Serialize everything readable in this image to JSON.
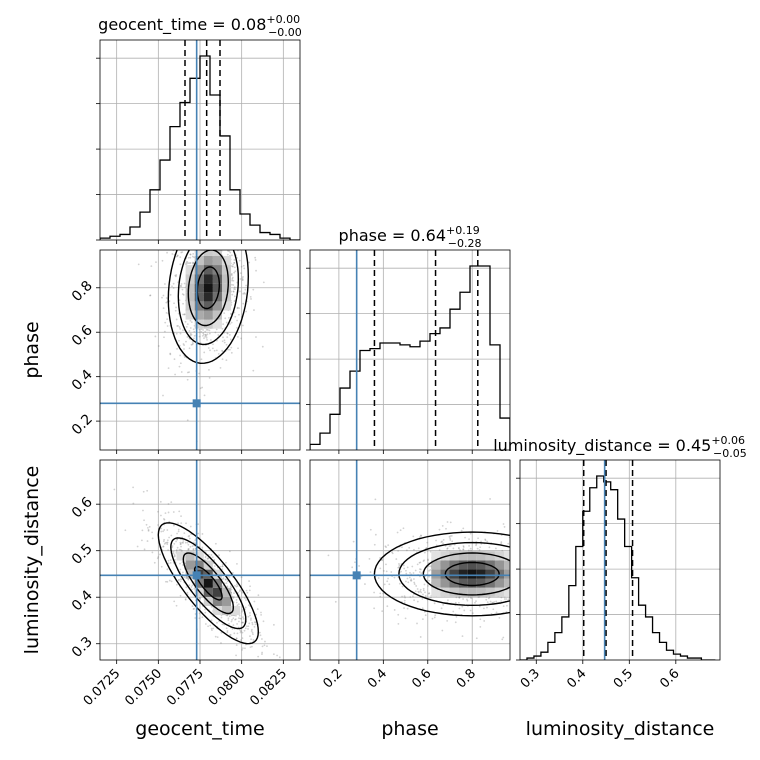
{
  "colors": {
    "truth": "#4682b4",
    "hist": "#000000",
    "grid": "#b0b0b0",
    "scatter": "#7f7f7f"
  },
  "chart_data": {
    "type": "corner",
    "parameters": [
      "geocent_time",
      "phase",
      "luminosity_distance"
    ],
    "axis_labels": [
      "geocent_time",
      "phase",
      "luminosity_distance"
    ],
    "ranges": {
      "geocent_time": [
        0.0715,
        0.0835
      ],
      "phase": [
        0.07,
        0.97
      ],
      "luminosity_distance": [
        0.265,
        0.695
      ]
    },
    "ticks": {
      "geocent_time": [
        {
          "v": 0.0725,
          "label": "0.0725"
        },
        {
          "v": 0.075,
          "label": "0.0750"
        },
        {
          "v": 0.0775,
          "label": "0.0775"
        },
        {
          "v": 0.08,
          "label": "0.0800"
        },
        {
          "v": 0.0825,
          "label": "0.0825"
        }
      ],
      "phase": [
        {
          "v": 0.2,
          "label": "0.2"
        },
        {
          "v": 0.4,
          "label": "0.4"
        },
        {
          "v": 0.6,
          "label": "0.6"
        },
        {
          "v": 0.8,
          "label": "0.8"
        }
      ],
      "luminosity_distance": [
        {
          "v": 0.3,
          "label": "0.3"
        },
        {
          "v": 0.4,
          "label": "0.4"
        },
        {
          "v": 0.5,
          "label": "0.5"
        },
        {
          "v": 0.6,
          "label": "0.6"
        }
      ]
    },
    "titles": [
      {
        "name": "geocent_time",
        "median": "0.08",
        "plus": "+0.00",
        "minus": "−0.00"
      },
      {
        "name": "phase",
        "median": "0.64",
        "plus": "+0.19",
        "minus": "−0.28"
      },
      {
        "name": "luminosity_distance",
        "median": "0.45",
        "plus": "+0.06",
        "minus": "−0.05"
      }
    ],
    "truths": {
      "geocent_time": 0.0773,
      "phase": 0.28,
      "luminosity_distance": 0.447
    },
    "quantiles": {
      "geocent_time": [
        0.0766,
        0.0779,
        0.0787
      ],
      "phase": [
        0.36,
        0.635,
        0.825
      ],
      "luminosity_distance": [
        0.402,
        0.45,
        0.507
      ]
    },
    "histograms": {
      "geocent_time": {
        "edges": [
          0.0715,
          0.0721,
          0.0727,
          0.0733,
          0.0739,
          0.0745,
          0.0751,
          0.0757,
          0.0763,
          0.0769,
          0.0775,
          0.0781,
          0.0787,
          0.0793,
          0.0799,
          0.0805,
          0.0811,
          0.0817,
          0.0823,
          0.0829,
          0.0835
        ],
        "counts": [
          0.01,
          0.02,
          0.03,
          0.07,
          0.15,
          0.27,
          0.43,
          0.61,
          0.74,
          0.87,
          0.99,
          0.78,
          0.56,
          0.27,
          0.14,
          0.08,
          0.04,
          0.03,
          0.01,
          0.0
        ]
      },
      "phase": {
        "edges": [
          0.07,
          0.115,
          0.16,
          0.205,
          0.25,
          0.295,
          0.34,
          0.385,
          0.43,
          0.475,
          0.52,
          0.565,
          0.61,
          0.655,
          0.7,
          0.745,
          0.79,
          0.835,
          0.88,
          0.925,
          0.97
        ],
        "counts": [
          0.03,
          0.09,
          0.19,
          0.33,
          0.42,
          0.53,
          0.54,
          0.57,
          0.57,
          0.56,
          0.55,
          0.58,
          0.62,
          0.65,
          0.75,
          0.84,
          0.98,
          0.98,
          0.56,
          0.17
        ]
      },
      "luminosity_distance": {
        "edges": [
          0.265,
          0.28,
          0.295,
          0.31,
          0.325,
          0.34,
          0.355,
          0.37,
          0.385,
          0.4,
          0.415,
          0.43,
          0.445,
          0.46,
          0.475,
          0.49,
          0.505,
          0.52,
          0.535,
          0.55,
          0.565,
          0.58,
          0.595,
          0.61,
          0.625,
          0.64,
          0.655,
          0.67,
          0.685
        ],
        "counts": [
          0.0,
          0.01,
          0.02,
          0.04,
          0.09,
          0.14,
          0.22,
          0.38,
          0.58,
          0.76,
          0.88,
          0.94,
          0.91,
          0.87,
          0.72,
          0.58,
          0.42,
          0.28,
          0.22,
          0.14,
          0.09,
          0.05,
          0.03,
          0.02,
          0.01,
          0.01,
          0.0,
          0.0
        ]
      }
    },
    "joint_peaks": [
      {
        "x": "geocent_time",
        "y": "phase",
        "mode": [
          0.078,
          0.8
        ],
        "spread": [
          0.0012,
          0.17
        ],
        "tilt": 0.15
      },
      {
        "x": "geocent_time",
        "y": "luminosity_distance",
        "mode": [
          0.078,
          0.43
        ],
        "spread": [
          0.0015,
          0.065
        ],
        "tilt": -0.8
      },
      {
        "x": "phase",
        "y": "luminosity_distance",
        "mode": [
          0.8,
          0.45
        ],
        "spread": [
          0.22,
          0.045
        ],
        "tilt": 0.0
      }
    ]
  }
}
